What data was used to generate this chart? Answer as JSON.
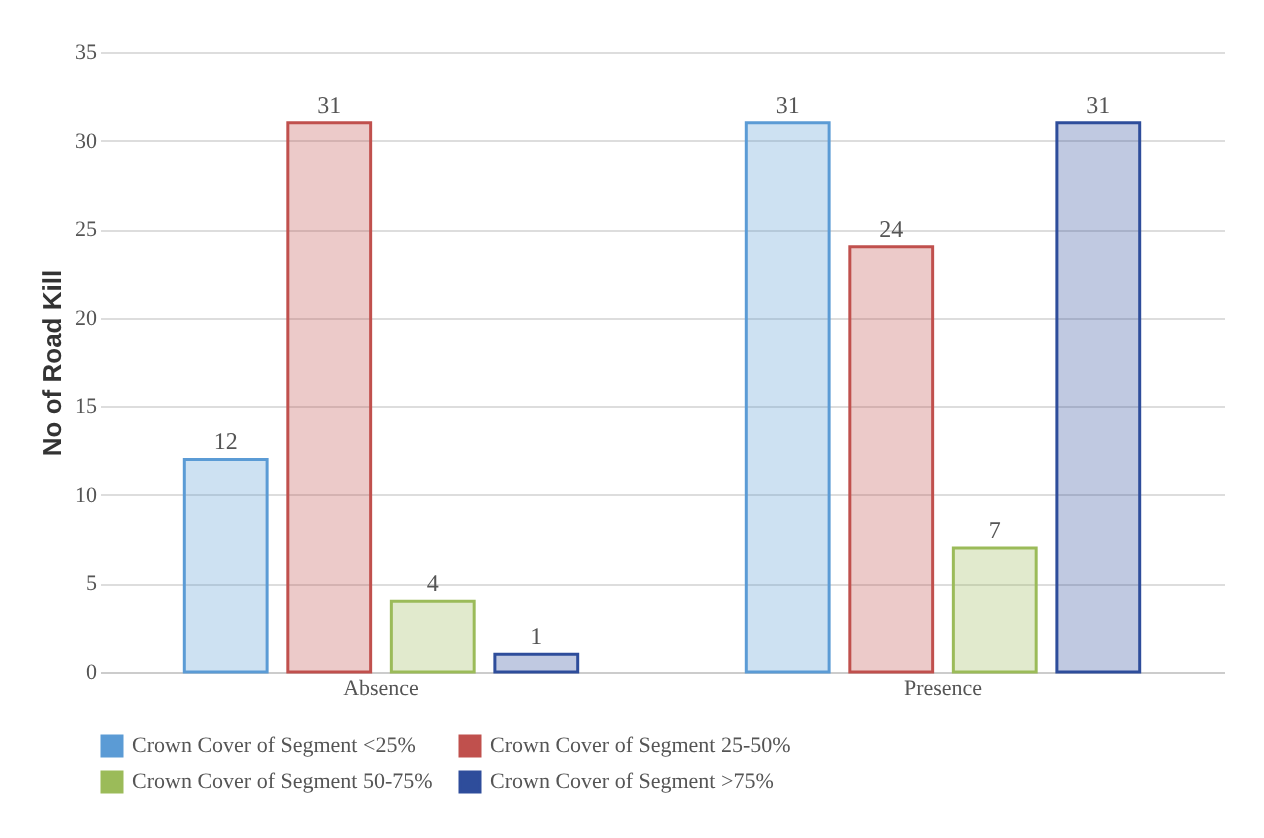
{
  "chart_data": {
    "type": "bar",
    "categories": [
      "Absence",
      "Presence"
    ],
    "ylabel": "No of  Road Kill",
    "ylim": [
      0,
      35
    ],
    "yticks": [
      0,
      5,
      10,
      15,
      20,
      25,
      30,
      35
    ],
    "grid": "y",
    "legend": "bottom",
    "data_labels": true,
    "series": [
      {
        "name": "Crown Cover of Segment <25%",
        "color": "#5b9bd5",
        "values": [
          12,
          31
        ]
      },
      {
        "name": "Crown Cover of Segment 25-50%",
        "color": "#c0504d",
        "values": [
          31,
          24
        ]
      },
      {
        "name": "Crown Cover of Segment 50-75%",
        "color": "#9bbb59",
        "values": [
          4,
          7
        ]
      },
      {
        "name": "Crown Cover of Segment >75%",
        "color": "#2e4d9b",
        "values": [
          1,
          31
        ]
      }
    ]
  }
}
